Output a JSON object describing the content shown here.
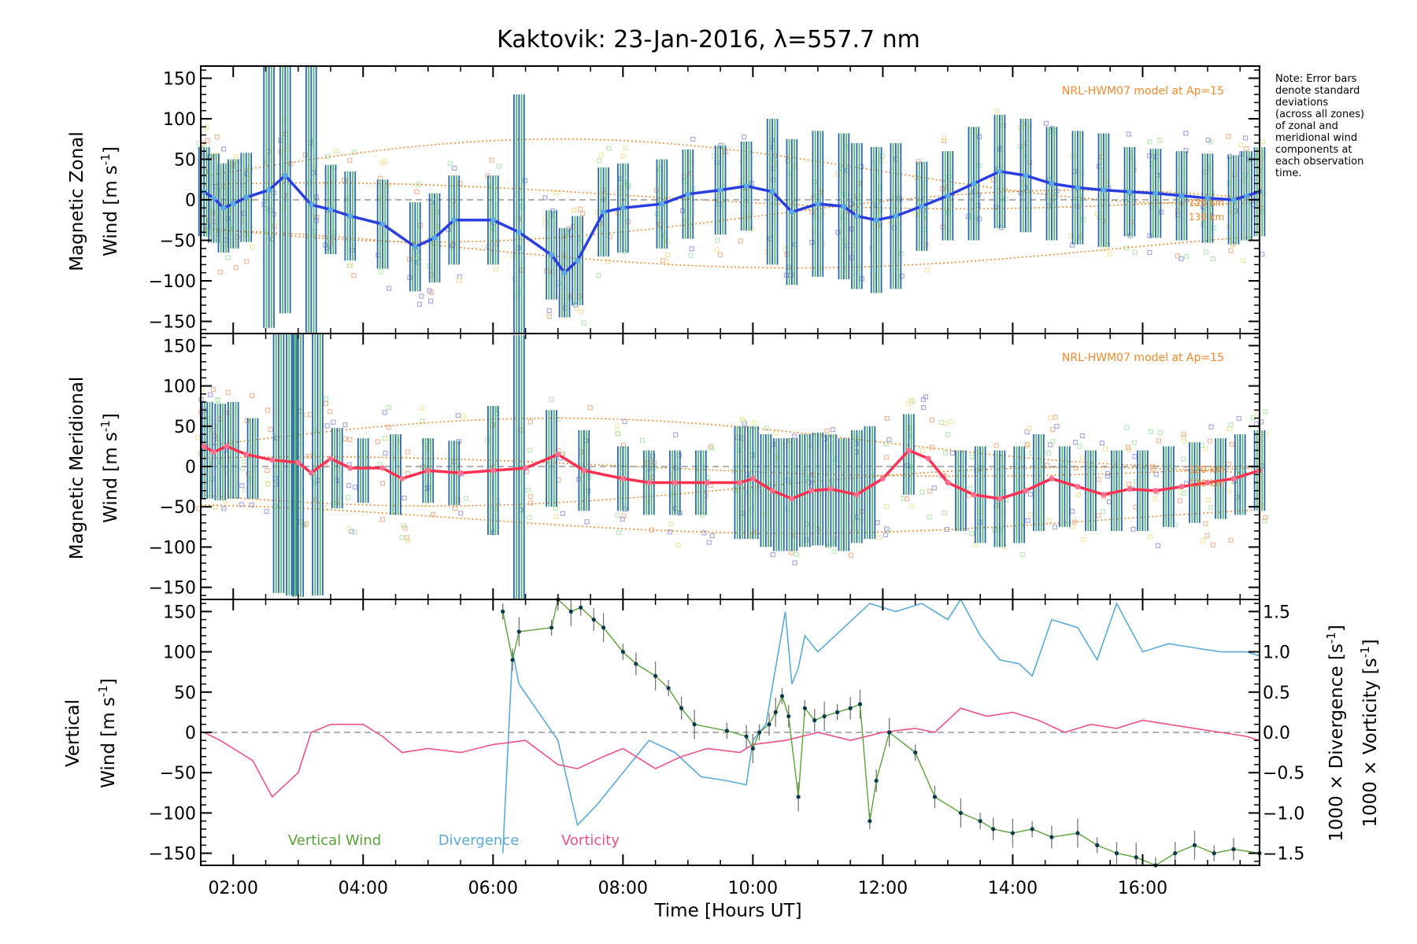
{
  "title": "Kaktovik: 23-Jan-2016, λ=557.7 nm",
  "note": [
    "Note: Error bars",
    "denote standard",
    "deviations",
    "(across all zones)",
    "of zonal and",
    "meridional wind",
    "components at",
    "each observation",
    "time."
  ],
  "xaxis": {
    "label": "Time [Hours UT]",
    "range_hours": [
      1.5,
      17.8
    ],
    "ticks": [
      2,
      4,
      6,
      8,
      10,
      12,
      14,
      16
    ],
    "tick_labels": [
      "02:00",
      "04:00",
      "06:00",
      "08:00",
      "10:00",
      "12:00",
      "14:00",
      "16:00"
    ]
  },
  "colors": {
    "zonal": "#2a3fe0",
    "zonal_light": "#5aa8e8",
    "meridional": "#ff3050",
    "model": "#f08a30",
    "vertical": "#5aa33a",
    "divergence": "#5aaad8",
    "vorticity": "#f0508a",
    "errbar_a": "#2a66aa",
    "errbar_b": "#56b870",
    "scatter_blue": "#a8a8e8",
    "scatter_orange": "#f5b898",
    "scatter_yellow": "#f2e6a8",
    "scatter_green": "#b8eab8"
  },
  "chart_data": [
    {
      "type": "line",
      "panel": "zonal",
      "ylabel_line1": "Magnetic Zonal",
      "ylabel_line2": "Wind [m s-1]",
      "ylim": [
        -165,
        165
      ],
      "yticks": [
        -150,
        -100,
        -50,
        0,
        50,
        100,
        150
      ],
      "ytick_labels": [
        "−150",
        "−100",
        "−50",
        "0",
        "50",
        "100",
        "150"
      ],
      "model_label": "NRL-HWM07 model at Ap=15",
      "model_alt_labels": [
        "120 km",
        "130 km"
      ],
      "series": [
        {
          "key": "zonal_mean",
          "x": [
            1.55,
            1.7,
            1.85,
            2.0,
            2.2,
            2.55,
            2.8,
            3.2,
            3.5,
            3.8,
            4.3,
            4.8,
            5.1,
            5.4,
            6.0,
            6.4,
            6.9,
            7.1,
            7.3,
            7.7,
            8.0,
            8.6,
            9.0,
            9.5,
            9.9,
            10.3,
            10.6,
            11.0,
            11.4,
            11.6,
            11.9,
            12.2,
            12.6,
            13.0,
            13.4,
            13.8,
            14.2,
            14.6,
            15.0,
            15.4,
            15.8,
            16.2,
            16.6,
            17.0,
            17.4,
            17.6,
            17.8
          ],
          "y": [
            10,
            2,
            -10,
            -5,
            3,
            12,
            30,
            -6,
            -12,
            -20,
            -30,
            -58,
            -47,
            -25,
            -25,
            -40,
            -68,
            -90,
            -75,
            -15,
            -10,
            -5,
            7,
            12,
            17,
            10,
            -15,
            -5,
            -8,
            -20,
            -25,
            -20,
            -8,
            5,
            20,
            35,
            30,
            20,
            15,
            12,
            10,
            8,
            5,
            2,
            0,
            5,
            10
          ]
        }
      ]
    },
    {
      "type": "line",
      "panel": "meridional",
      "ylabel_line1": "Magnetic Meridional",
      "ylabel_line2": "Wind [m s-1]",
      "ylim": [
        -165,
        165
      ],
      "yticks": [
        -150,
        -100,
        -50,
        0,
        50,
        100,
        150
      ],
      "ytick_labels": [
        "−150",
        "−100",
        "−50",
        "0",
        "50",
        "100",
        "150"
      ],
      "model_label": "NRL-HWM07 model at Ap=15",
      "model_alt_labels": [
        "120 km",
        "130 km"
      ],
      "series": [
        {
          "key": "meridional_mean",
          "x": [
            1.55,
            1.7,
            1.9,
            2.2,
            2.6,
            3.0,
            3.2,
            3.5,
            3.8,
            4.3,
            4.6,
            5.0,
            5.5,
            6.0,
            6.5,
            7.0,
            7.4,
            8.0,
            8.4,
            8.8,
            9.3,
            9.8,
            10.0,
            10.3,
            10.6,
            10.9,
            11.2,
            11.6,
            12.0,
            12.4,
            12.7,
            13.0,
            13.4,
            13.8,
            14.2,
            14.6,
            15.0,
            15.4,
            15.8,
            16.2,
            16.6,
            17.0,
            17.4,
            17.8
          ],
          "y": [
            25,
            18,
            25,
            15,
            8,
            5,
            -8,
            10,
            -2,
            -2,
            -15,
            -5,
            -8,
            -5,
            -2,
            15,
            -5,
            -15,
            -20,
            -20,
            -20,
            -20,
            -15,
            -30,
            -40,
            -30,
            -28,
            -35,
            -15,
            20,
            10,
            -20,
            -35,
            -40,
            -30,
            -15,
            -25,
            -35,
            -28,
            -30,
            -25,
            -20,
            -15,
            -5
          ]
        },
        {
          "key": "meridional_errbars",
          "x": [
            1.6,
            1.8,
            2.0,
            2.3,
            2.7,
            2.9,
            3.0,
            3.3,
            3.6,
            4.0,
            4.5,
            5.0,
            5.4,
            6.0,
            6.4,
            6.9,
            7.4,
            8.0,
            8.4,
            8.8,
            9.2,
            9.8,
            10.0,
            10.2,
            10.4,
            10.6,
            10.8,
            11.0,
            11.2,
            11.4,
            11.6,
            11.8,
            12.4,
            13.2,
            13.5,
            13.8,
            14.1,
            14.4,
            14.8,
            15.2,
            15.6,
            16.0,
            16.4,
            16.8,
            17.2,
            17.5,
            17.8
          ],
          "y": [
            20,
            18,
            20,
            10,
            8,
            5,
            3,
            5,
            -2,
            -5,
            -10,
            -5,
            -8,
            -5,
            -2,
            10,
            -5,
            -15,
            -20,
            -20,
            -20,
            -20,
            -20,
            -30,
            -35,
            -35,
            -30,
            -28,
            -30,
            -35,
            -25,
            -20,
            15,
            -30,
            -35,
            -40,
            -35,
            -20,
            -25,
            -30,
            -30,
            -30,
            -25,
            -20,
            -15,
            -10,
            -5
          ],
          "err": [
            60,
            60,
            60,
            50,
            165,
            165,
            165,
            165,
            50,
            40,
            50,
            40,
            40,
            80,
            165,
            60,
            50,
            40,
            40,
            40,
            40,
            70,
            70,
            70,
            70,
            70,
            70,
            70,
            70,
            70,
            70,
            70,
            50,
            50,
            60,
            60,
            60,
            60,
            50,
            50,
            50,
            50,
            50,
            50,
            50,
            50,
            50
          ]
        }
      ]
    },
    {
      "type": "line",
      "panel": "vertical",
      "ylabel_line1": "Vertical",
      "ylabel_line2": "Wind [m s-1]",
      "ylim": [
        -165,
        165
      ],
      "yticks": [
        -150,
        -100,
        -50,
        0,
        50,
        100,
        150
      ],
      "ytick_labels": [
        "−150",
        "−100",
        "−50",
        "0",
        "50",
        "100",
        "150"
      ],
      "y2label_div": "1000 × Divergence [s-1]",
      "y2label_vort": "1000 × Vorticity [s-1]",
      "y2lim": [
        -1.65,
        1.65
      ],
      "y2ticks": [
        -1.5,
        -1.0,
        -0.5,
        0.0,
        0.5,
        1.0,
        1.5
      ],
      "y2tick_labels": [
        "−1.5",
        "−1.0",
        "−0.5",
        "0.0",
        "0.5",
        "1.0",
        "1.5"
      ],
      "legend": [
        "Vertical Wind",
        "Divergence",
        "Vorticity"
      ],
      "series": [
        {
          "key": "vertical",
          "axis": "left",
          "x": [
            6.15,
            6.3,
            6.4,
            6.9,
            7.0,
            7.2,
            7.35,
            7.55,
            7.7,
            8.0,
            8.2,
            8.5,
            8.7,
            8.9,
            9.1,
            9.6,
            9.9,
            10.0,
            10.1,
            10.25,
            10.35,
            10.45,
            10.55,
            10.7,
            10.8,
            10.95,
            11.1,
            11.3,
            11.5,
            11.65,
            11.8,
            11.9,
            12.1,
            12.5,
            12.8,
            13.2,
            13.5,
            13.7,
            14.0,
            14.3,
            14.6,
            15.0,
            15.3,
            15.6,
            15.9,
            16.2,
            16.5,
            16.8,
            17.1,
            17.4,
            17.8
          ],
          "y": [
            150,
            90,
            125,
            130,
            165,
            150,
            155,
            140,
            130,
            100,
            85,
            70,
            55,
            30,
            10,
            2,
            -5,
            -20,
            0,
            10,
            25,
            45,
            20,
            -80,
            30,
            15,
            20,
            25,
            30,
            35,
            -110,
            -60,
            0,
            -25,
            -80,
            -100,
            -110,
            -120,
            -125,
            -120,
            -130,
            -125,
            -140,
            -150,
            -155,
            -165,
            -150,
            -140,
            -150,
            -145,
            -150
          ]
        },
        {
          "key": "divergence",
          "axis": "right",
          "x": [
            6.15,
            6.3,
            6.4,
            7.0,
            7.3,
            7.6,
            8.0,
            8.4,
            8.8,
            9.2,
            9.6,
            9.9,
            10.0,
            10.2,
            10.5,
            10.6,
            10.7,
            10.8,
            11.0,
            11.4,
            11.8,
            12.2,
            12.6,
            13.0,
            13.2,
            13.5,
            13.8,
            14.1,
            14.3,
            14.6,
            15.0,
            15.3,
            15.6,
            16.0,
            16.4,
            16.8,
            17.2,
            17.6,
            17.8
          ],
          "y": [
            -1.5,
            1.0,
            0.6,
            -0.1,
            -1.15,
            -0.9,
            -0.5,
            -0.1,
            -0.25,
            -0.55,
            -0.6,
            -0.65,
            -0.1,
            0.1,
            1.5,
            0.6,
            0.8,
            1.2,
            1.0,
            1.3,
            1.6,
            1.5,
            1.6,
            1.4,
            1.65,
            1.2,
            0.9,
            0.85,
            0.7,
            1.4,
            1.3,
            0.9,
            1.6,
            1.0,
            1.1,
            1.05,
            1.0,
            1.0,
            0.95
          ]
        },
        {
          "key": "vorticity",
          "axis": "right",
          "x": [
            1.55,
            1.8,
            2.0,
            2.3,
            2.6,
            2.8,
            3.0,
            3.2,
            3.5,
            4.0,
            4.3,
            4.6,
            5.0,
            5.5,
            6.0,
            6.5,
            7.0,
            7.3,
            7.7,
            8.0,
            8.5,
            8.9,
            9.3,
            9.8,
            10.0,
            10.5,
            11.0,
            11.5,
            12.0,
            12.5,
            12.8,
            13.2,
            13.6,
            14.0,
            14.4,
            14.8,
            15.2,
            15.6,
            16.0,
            16.4,
            16.8,
            17.2,
            17.6,
            17.8
          ],
          "y": [
            0.0,
            -0.1,
            -0.2,
            -0.35,
            -0.8,
            -0.65,
            -0.5,
            0.0,
            0.1,
            0.1,
            -0.05,
            -0.25,
            -0.2,
            -0.25,
            -0.15,
            -0.1,
            -0.4,
            -0.45,
            -0.3,
            -0.2,
            -0.45,
            -0.3,
            -0.2,
            -0.25,
            -0.15,
            -0.1,
            0.0,
            -0.1,
            0.0,
            0.05,
            0.0,
            0.3,
            0.2,
            0.25,
            0.15,
            0.0,
            0.1,
            0.05,
            0.15,
            0.1,
            0.05,
            0.0,
            -0.05,
            -0.1
          ]
        }
      ]
    }
  ]
}
